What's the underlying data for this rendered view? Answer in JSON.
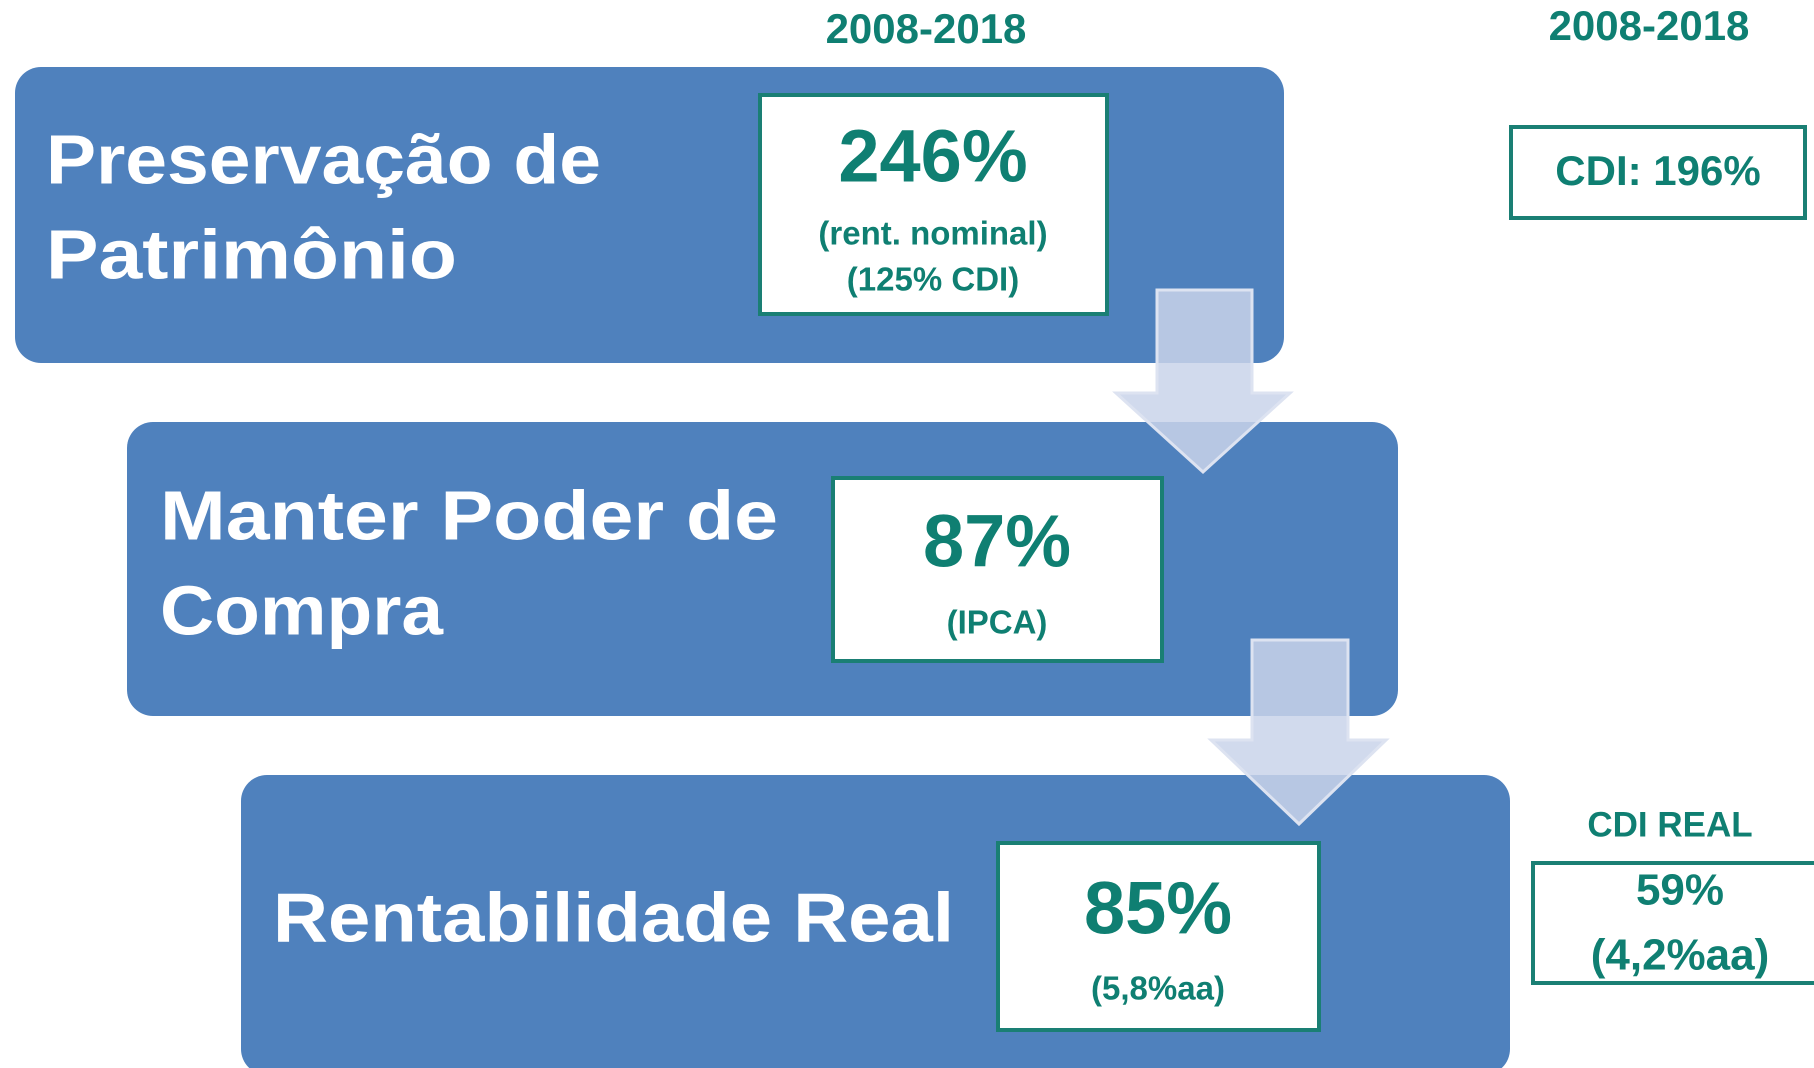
{
  "headers": {
    "left": "2008-2018",
    "right": "2008-2018"
  },
  "stages": [
    {
      "title": [
        "Preservação de",
        "Patrimônio"
      ],
      "value": "246%",
      "notes": [
        "(rent. nominal)",
        "(125% CDI)"
      ]
    },
    {
      "title": [
        "Manter Poder de",
        "Compra"
      ],
      "value": "87%",
      "notes": [
        "(IPCA)"
      ]
    },
    {
      "title": [
        "Rentabilidade Real"
      ],
      "value": "85%",
      "notes": [
        "(5,8%aa)"
      ]
    }
  ],
  "side": {
    "cdi": "CDI: 196%",
    "cdi_real_label": "CDI REAL",
    "cdi_real_lines": [
      "59%",
      "(4,2%aa)"
    ]
  }
}
